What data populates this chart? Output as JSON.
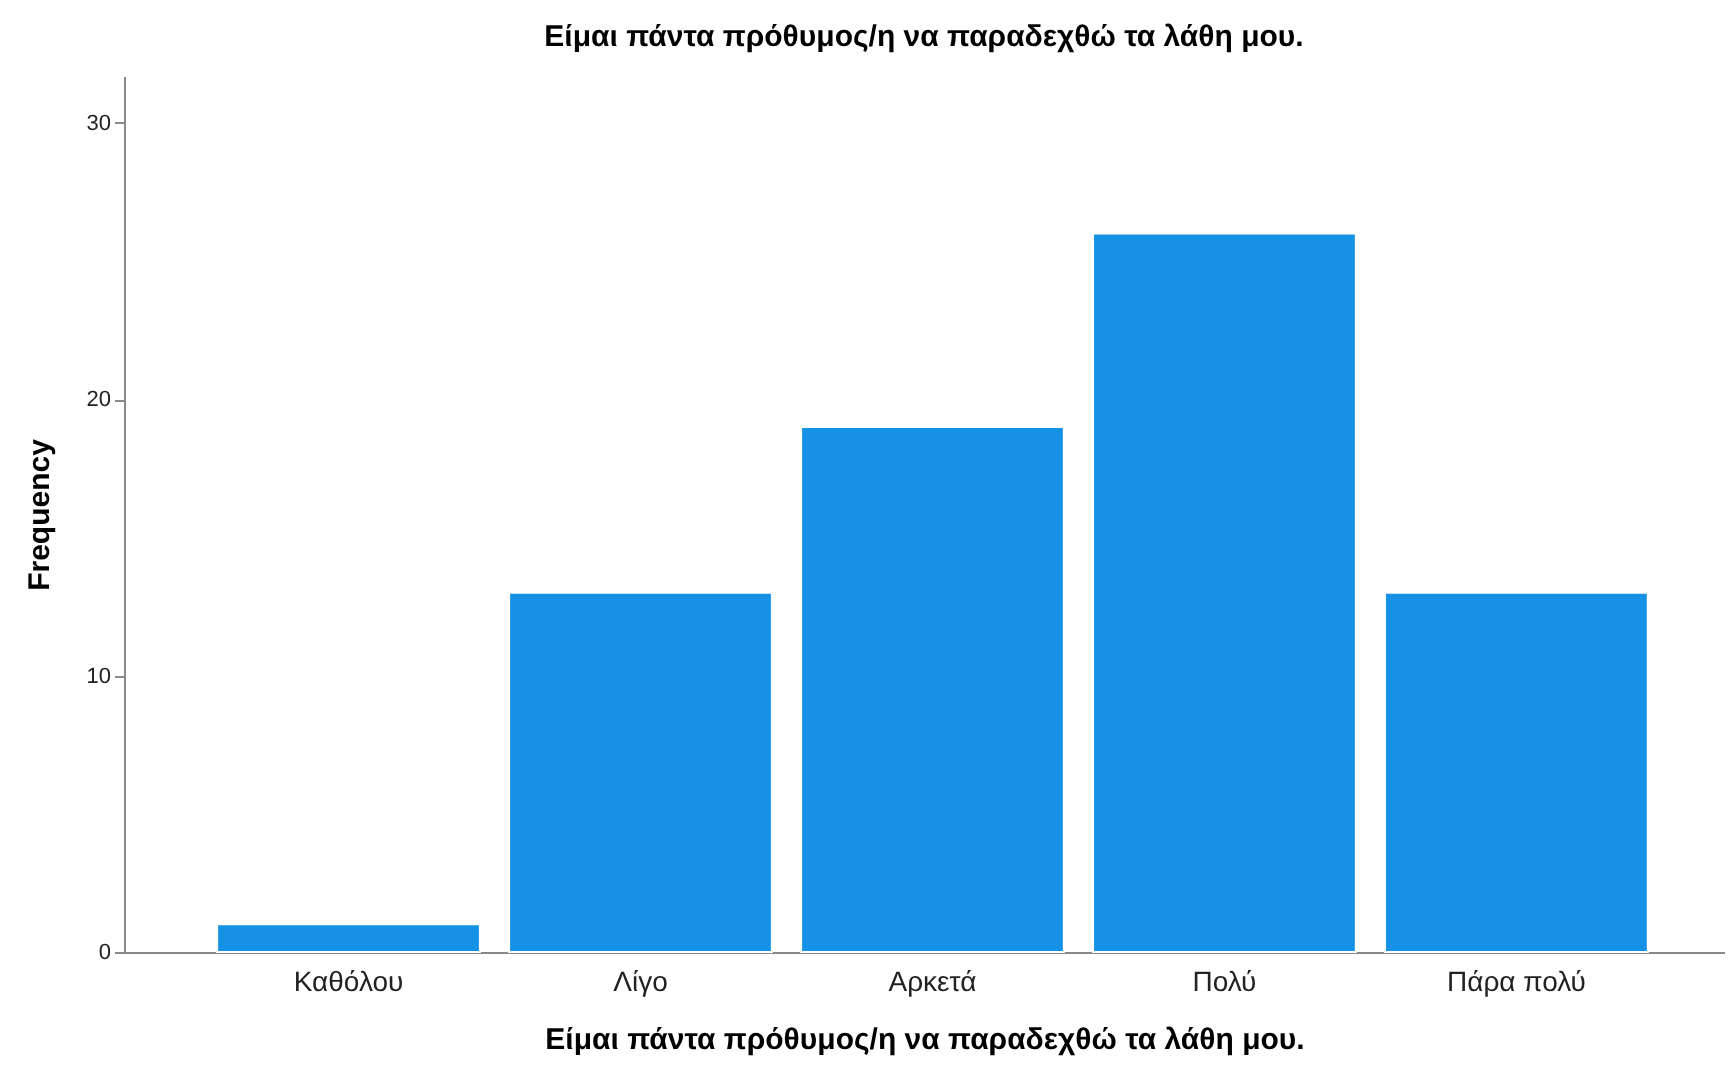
{
  "chart_data": {
    "type": "bar",
    "title": "Είμαι πάντα πρόθυμος/η να παραδεχθώ τα λάθη μου.",
    "xlabel": "Είμαι πάντα πρόθυμος/η να παραδεχθώ τα λάθη μου.",
    "ylabel": "Frequency",
    "categories": [
      "Καθόλου",
      "Λίγο",
      "Αρκετά",
      "Πολύ",
      "Πάρα πολύ"
    ],
    "values": [
      1,
      13,
      19,
      26,
      13
    ],
    "color": "#1592e6",
    "ylim": [
      0,
      31.7
    ],
    "yticks": [
      0,
      10,
      20,
      30
    ],
    "grid": false
  }
}
